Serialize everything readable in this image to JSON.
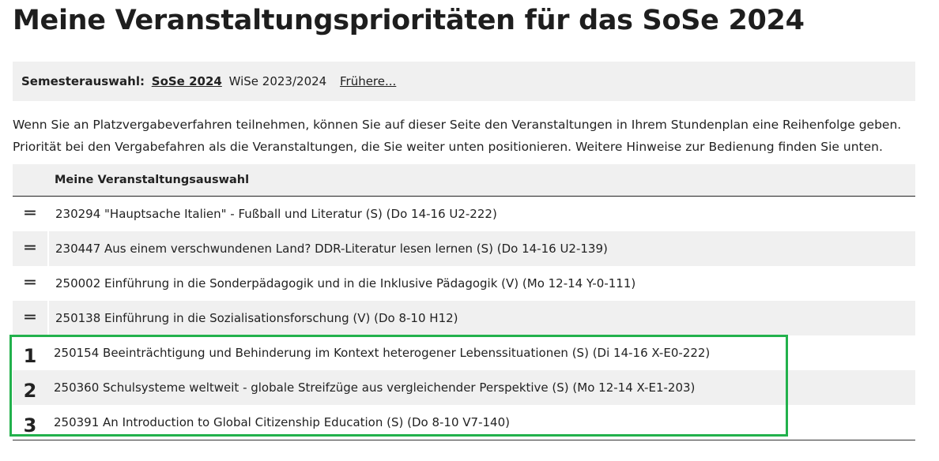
{
  "title": "Meine Veranstaltungsprioritäten für das SoSe 2024",
  "semester": {
    "label": "Semesterauswahl:",
    "current": "SoSe 2024",
    "other": "WiSe 2023/2024",
    "more": "Frühere..."
  },
  "intro": [
    "Wenn Sie an Platzvergabeverfahren teilnehmen, können Sie auf dieser Seite den Veranstaltungen in Ihrem Stundenplan eine Reihenfolge geben.",
    "Priorität bei den Vergabefahren als die Veranstaltungen, die Sie weiter unten positionieren. Weitere Hinweise zur Bedienung finden Sie unten."
  ],
  "table": {
    "header": "Meine Veranstaltungsauswahl",
    "rows": [
      {
        "handle": "═",
        "text": "230294 \"Hauptsache Italien\" - Fußball und Literatur (S) (Do 14-16 U2-222)"
      },
      {
        "handle": "═",
        "text": "230447 Aus einem verschwundenen Land? DDR-Literatur lesen lernen (S) (Do 14-16 U2-139)"
      },
      {
        "handle": "═",
        "text": "250002 Einführung in die Sonderpädagogik und in die Inklusive Pädagogik (V) (Mo 12-14 Y-0-111)"
      },
      {
        "handle": "═",
        "text": "250138 Einführung in die Sozialisationsforschung (V) (Do 8-10 H12)"
      },
      {
        "rank": "1",
        "text": "250154 Beeinträchtigung und Behinderung im Kontext heterogener Lebenssituationen (S) (Di 14-16 X-E0-222)"
      },
      {
        "rank": "2",
        "text": "250360 Schulsysteme weltweit - globale Streifzüge aus vergleichender Perspektive (S) (Mo 12-14 X-E1-203)"
      },
      {
        "rank": "3",
        "text": "250391 An Introduction to Global Citizenship Education (S) (Do 8-10 V7-140)"
      }
    ]
  },
  "highlight_color": "#22b14c"
}
